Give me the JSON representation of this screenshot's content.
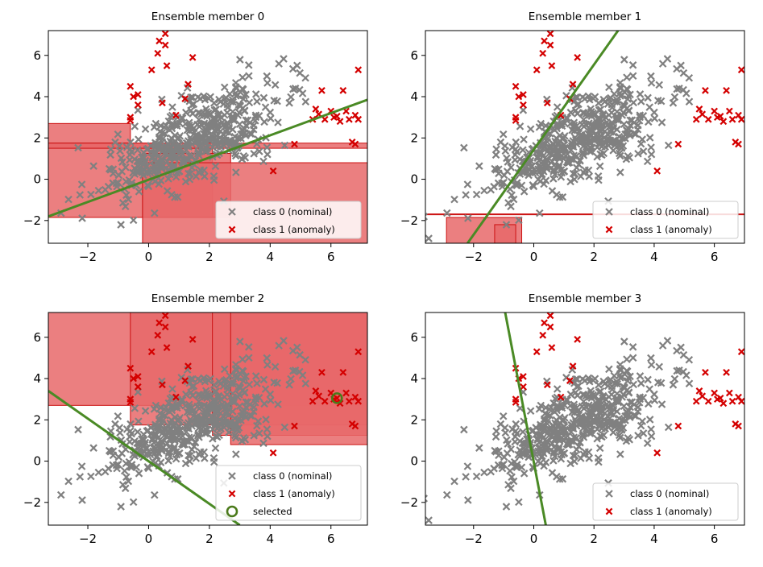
{
  "figure": {
    "marker_nominal_color": "#808080",
    "marker_anomaly_color": "#d40000",
    "region_fill_color": "#e8686a",
    "region_edge_color": "#cc1111",
    "separator_color": "#4a8a25",
    "selected_color": "#4a7a1a"
  },
  "chart_data": [
    {
      "type": "scatter",
      "title": "Ensemble member 0",
      "xlim": [
        -3.3,
        7.2
      ],
      "ylim": [
        -3.1,
        7.2
      ],
      "xticks": [
        -2,
        0,
        2,
        4,
        6
      ],
      "yticks": [
        -2,
        0,
        2,
        4,
        6
      ],
      "xtick_labels": [
        "−2",
        "0",
        "2",
        "4",
        "6"
      ],
      "ytick_labels": [
        "−2",
        "0",
        "2",
        "4",
        "6"
      ],
      "legend": {
        "position": "lower-right",
        "entries": [
          "class 0 (nominal)",
          "class 1 (anomaly)"
        ]
      },
      "line": {
        "x": [
          -3.3,
          7.2
        ],
        "y": [
          -1.8,
          3.85
        ]
      },
      "regions": [
        {
          "x": [
            -3.3,
            -0.6
          ],
          "y": [
            1.55,
            2.7
          ]
        },
        {
          "x": [
            -3.3,
            2.1
          ],
          "y": [
            -1.85,
            1.75
          ]
        },
        {
          "x": [
            -0.2,
            2.7
          ],
          "y": [
            -1.85,
            1.25
          ]
        },
        {
          "x": [
            -0.2,
            7.2
          ],
          "y": [
            -3.1,
            0.8
          ]
        },
        {
          "x": [
            -3.3,
            7.2
          ],
          "y": [
            1.5,
            1.75
          ]
        }
      ]
    },
    {
      "type": "scatter",
      "title": "Ensemble member 1",
      "xlim": [
        -3.6,
        7.0
      ],
      "ylim": [
        -3.1,
        7.2
      ],
      "xticks": [
        -2,
        0,
        2,
        4,
        6
      ],
      "yticks": [
        -2,
        0,
        2,
        4,
        6
      ],
      "xtick_labels": [
        "−2",
        "0",
        "2",
        "4",
        "6"
      ],
      "ytick_labels": [
        "−2",
        "0",
        "2",
        "4",
        "6"
      ],
      "legend": {
        "position": "lower-right",
        "entries": [
          "class 0 (nominal)",
          "class 1 (anomaly)"
        ]
      },
      "line": {
        "x": [
          -2.2,
          2.8
        ],
        "y": [
          -3.1,
          7.2
        ]
      },
      "regions": [
        {
          "x": [
            -3.6,
            7.0
          ],
          "y": [
            -1.72,
            -1.68
          ]
        },
        {
          "x": [
            -2.9,
            -0.4
          ],
          "y": [
            -3.1,
            -1.85
          ]
        },
        {
          "x": [
            -1.3,
            -0.6
          ],
          "y": [
            -3.1,
            -2.2
          ]
        }
      ]
    },
    {
      "type": "scatter",
      "title": "Ensemble member 2",
      "xlim": [
        -3.3,
        7.2
      ],
      "ylim": [
        -3.1,
        7.2
      ],
      "xticks": [
        -2,
        0,
        2,
        4,
        6
      ],
      "yticks": [
        -2,
        0,
        2,
        4,
        6
      ],
      "xtick_labels": [
        "−2",
        "0",
        "2",
        "4",
        "6"
      ],
      "ytick_labels": [
        "−2",
        "0",
        "2",
        "4",
        "6"
      ],
      "legend": {
        "position": "lower-right",
        "entries": [
          "class 0 (nominal)",
          "class 1 (anomaly)",
          "selected"
        ]
      },
      "line": {
        "x": [
          -3.3,
          3.0
        ],
        "y": [
          3.4,
          -3.1
        ]
      },
      "selected": {
        "x": 6.2,
        "y": 3.05
      },
      "regions": [
        {
          "x": [
            -3.3,
            7.2
          ],
          "y": [
            2.7,
            7.2
          ]
        },
        {
          "x": [
            -0.6,
            7.2
          ],
          "y": [
            1.75,
            7.2
          ]
        },
        {
          "x": [
            2.1,
            7.2
          ],
          "y": [
            1.25,
            7.2
          ]
        },
        {
          "x": [
            2.7,
            7.2
          ],
          "y": [
            0.8,
            7.2
          ]
        }
      ]
    },
    {
      "type": "scatter",
      "title": "Ensemble member 3",
      "xlim": [
        -3.6,
        7.0
      ],
      "ylim": [
        -3.1,
        7.2
      ],
      "xticks": [
        -2,
        0,
        2,
        4,
        6
      ],
      "yticks": [
        -2,
        0,
        2,
        4,
        6
      ],
      "xtick_labels": [
        "−2",
        "0",
        "2",
        "4",
        "6"
      ],
      "ytick_labels": [
        "−2",
        "0",
        "2",
        "4",
        "6"
      ],
      "legend": {
        "position": "lower-right",
        "entries": [
          "class 0 (nominal)",
          "class 1 (anomaly)"
        ]
      },
      "line": {
        "x": [
          -0.95,
          0.4
        ],
        "y": [
          7.2,
          -3.1
        ]
      },
      "regions": []
    }
  ],
  "points": {
    "class1_anomaly": [
      [
        -0.6,
        4.5
      ],
      [
        -0.5,
        4.0
      ],
      [
        -0.35,
        3.6
      ],
      [
        -0.6,
        3.0
      ],
      [
        -0.6,
        2.85
      ],
      [
        -0.35,
        4.1
      ],
      [
        0.1,
        5.3
      ],
      [
        0.3,
        6.1
      ],
      [
        0.35,
        6.7
      ],
      [
        0.55,
        6.5
      ],
      [
        0.55,
        7.05
      ],
      [
        0.6,
        5.5
      ],
      [
        0.45,
        3.7
      ],
      [
        0.9,
        3.1
      ],
      [
        1.2,
        3.9
      ],
      [
        1.3,
        4.6
      ],
      [
        1.45,
        5.9
      ],
      [
        4.1,
        0.4
      ],
      [
        4.8,
        1.7
      ],
      [
        5.5,
        3.4
      ],
      [
        5.6,
        3.15
      ],
      [
        5.7,
        4.3
      ],
      [
        5.8,
        2.9
      ],
      [
        6.0,
        3.3
      ],
      [
        6.1,
        3.0
      ],
      [
        6.2,
        3.05
      ],
      [
        6.4,
        4.3
      ],
      [
        6.5,
        3.3
      ],
      [
        6.6,
        2.9
      ],
      [
        6.7,
        1.8
      ],
      [
        6.8,
        3.1
      ],
      [
        6.9,
        2.9
      ],
      [
        6.9,
        5.3
      ],
      [
        6.8,
        1.7
      ],
      [
        6.3,
        2.8
      ],
      [
        5.4,
        2.9
      ]
    ]
  }
}
